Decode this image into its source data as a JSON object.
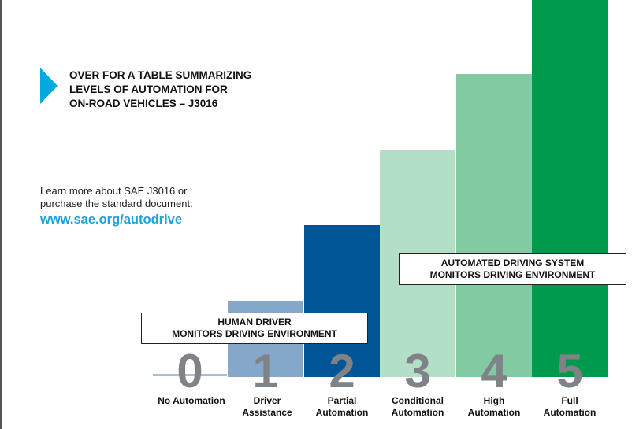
{
  "heading": {
    "lines": [
      "OVER FOR A TABLE SUMMARIZING",
      "LEVELS OF AUTOMATION FOR",
      "ON-ROAD VEHICLES – J3016"
    ]
  },
  "learn_more": {
    "lines": [
      "Learn more about SAE J3016 or",
      "purchase the standard document:"
    ],
    "link": "www.sae.org/autodrive"
  },
  "colors": {
    "arrow": "#00a9e0",
    "link": "#1aa4dc",
    "level1": "#85a8ca",
    "level2": "#005596",
    "level3": "#b4dfc7",
    "level4": "#82caa2",
    "level5": "#009a4d",
    "digits": "#7f8286"
  },
  "chart_data": {
    "type": "bar",
    "categories": [
      "0",
      "1",
      "2",
      "3",
      "4",
      "5"
    ],
    "labels": [
      [
        "No Automation"
      ],
      [
        "Driver",
        "Assistance"
      ],
      [
        "Partial",
        "Automation"
      ],
      [
        "Conditional",
        "Automation"
      ],
      [
        "High",
        "Automation"
      ],
      [
        "Full",
        "Automation"
      ]
    ],
    "values": [
      0,
      1,
      2,
      3,
      4,
      5
    ],
    "groups": [
      {
        "lines": [
          "HUMAN DRIVER",
          "MONITORS DRIVING ENVIRONMENT"
        ],
        "levels": [
          0,
          1,
          2
        ]
      },
      {
        "lines": [
          "AUTOMATED DRIVING SYSTEM",
          "MONITORS DRIVING ENVIRONMENT"
        ],
        "levels": [
          3,
          4,
          5
        ]
      }
    ]
  }
}
